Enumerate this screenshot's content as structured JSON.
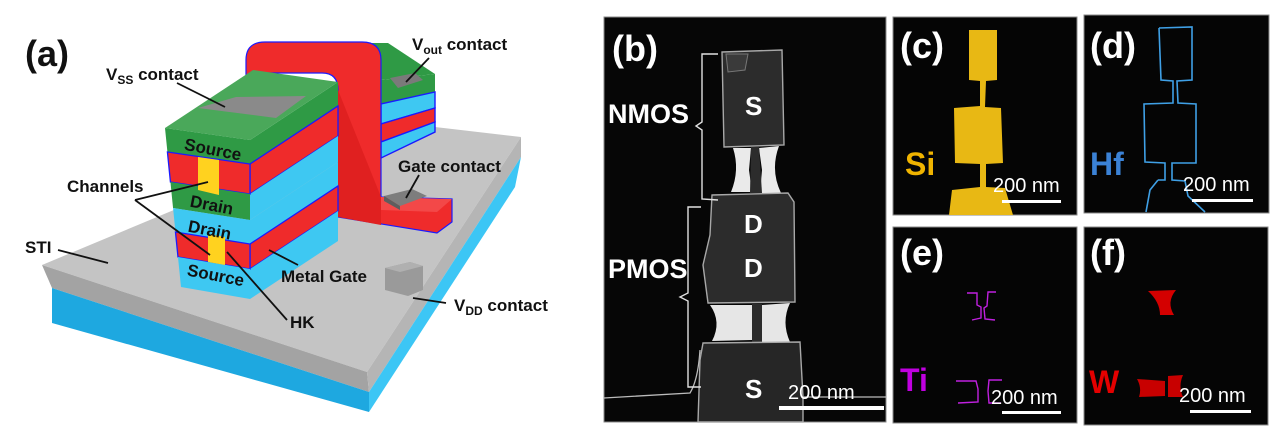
{
  "colors": {
    "green": "#2f9a45",
    "green_top": "#4aa85a",
    "red": "#ef2b2b",
    "blue": "#3ec8f2",
    "channel_yellow": "#ffd21f",
    "hk_edge": "#1a1aff",
    "sti_gray": "#bdbdbd",
    "substrate_blue": "#1ea8e0",
    "si": "#e8b814",
    "hf": "#3b82d6",
    "ti": "#c000e0",
    "w": "#e40000"
  },
  "panel_a": {
    "label": "(a)",
    "vss": {
      "main": "V",
      "sub": "SS",
      "rest": " contact"
    },
    "vout": {
      "main": "V",
      "sub": "out",
      "rest": " contact"
    },
    "vdd": {
      "main": "V",
      "sub": "DD",
      "rest": " contact"
    },
    "gate_contact": "Gate contact",
    "channels": "Channels",
    "sti": "STI",
    "metal_gate": "Metal Gate",
    "hk": "HK",
    "layers": {
      "source_top": "Source",
      "drain_upper": "Drain",
      "drain_lower": "Drain",
      "source_bottom": "Source"
    }
  },
  "panel_b": {
    "label": "(b)",
    "nmos": "NMOS",
    "pmos": "PMOS",
    "regions": [
      "S",
      "D",
      "D",
      "S"
    ],
    "scale": "200 nm"
  },
  "panel_c": {
    "label": "(c)",
    "element": "Si",
    "scale": "200 nm"
  },
  "panel_d": {
    "label": "(d)",
    "element": "Hf",
    "scale": "200 nm"
  },
  "panel_e": {
    "label": "(e)",
    "element": "Ti",
    "scale": "200 nm"
  },
  "panel_f": {
    "label": "(f)",
    "element": "W",
    "scale": "200 nm"
  }
}
